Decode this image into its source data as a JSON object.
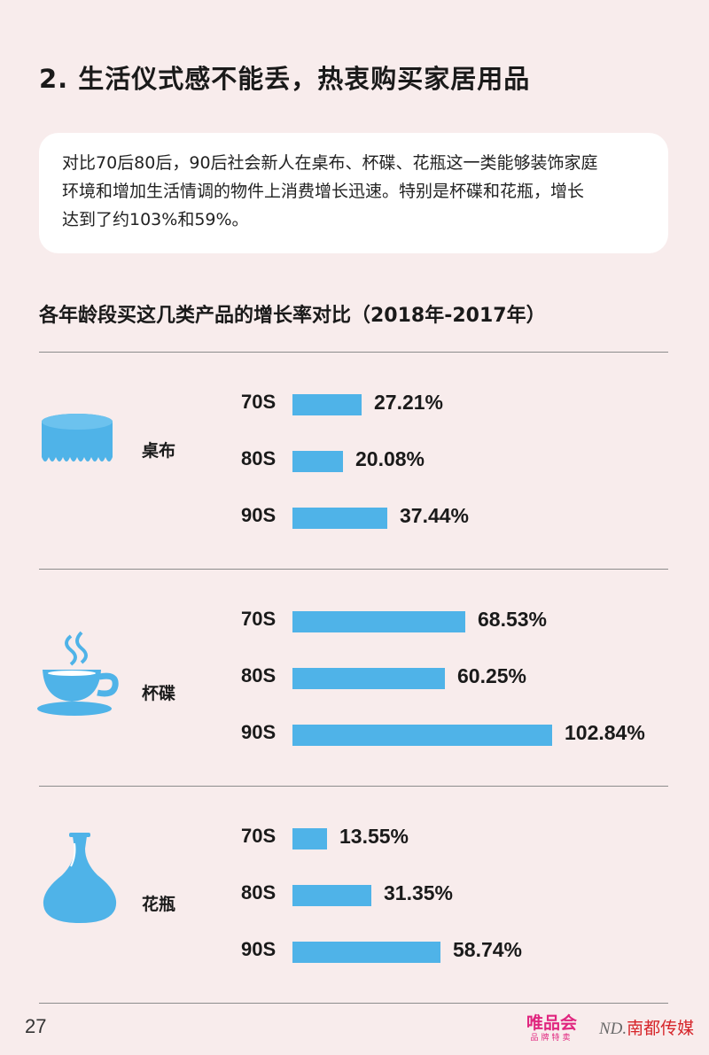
{
  "page": {
    "headline": "2. 生活仪式感不能丢，热衷购买家居用品",
    "summary_lines": [
      "对比70后80后，90后社会新人在桌布、杯碟、花瓶这一类能够装饰家庭",
      "环境和增加生活情调的物件上消费增长迅速。特别是杯碟和花瓶，增长",
      "达到了约103%和59%。"
    ],
    "page_number": "27",
    "brands": {
      "vip_main": "唯品会",
      "vip_sub": "品牌特卖",
      "nd_mark": "ND.",
      "nd_name": "南都传媒"
    },
    "colors": {
      "background": "#f8ecec",
      "bar": "#4fb3e8",
      "icon": "#4fb3e8",
      "vip_brand": "#e0267f",
      "nd_brand": "#d6262b"
    },
    "icons": [
      "tablecloth-icon",
      "cup-saucer-icon",
      "vase-icon"
    ]
  },
  "chart_data": {
    "type": "bar",
    "orientation": "horizontal",
    "title": "各年龄段买这几类产品的增长率对比（2018年-2017年）",
    "groups": [
      {
        "category": "桌布",
        "icon": "tablecloth-icon",
        "items": [
          {
            "age": "70S",
            "value": 27.21,
            "label": "27.21%"
          },
          {
            "age": "80S",
            "value": 20.08,
            "label": "20.08%"
          },
          {
            "age": "90S",
            "value": 37.44,
            "label": "37.44%"
          }
        ]
      },
      {
        "category": "杯碟",
        "icon": "cup-saucer-icon",
        "items": [
          {
            "age": "70S",
            "value": 68.53,
            "label": "68.53%"
          },
          {
            "age": "80S",
            "value": 60.25,
            "label": "60.25%"
          },
          {
            "age": "90S",
            "value": 102.84,
            "label": "102.84%"
          }
        ]
      },
      {
        "category": "花瓶",
        "icon": "vase-icon",
        "items": [
          {
            "age": "70S",
            "value": 13.55,
            "label": "13.55%"
          },
          {
            "age": "80S",
            "value": 31.35,
            "label": "31.35%"
          },
          {
            "age": "90S",
            "value": 58.74,
            "label": "58.74%"
          }
        ]
      }
    ]
  }
}
